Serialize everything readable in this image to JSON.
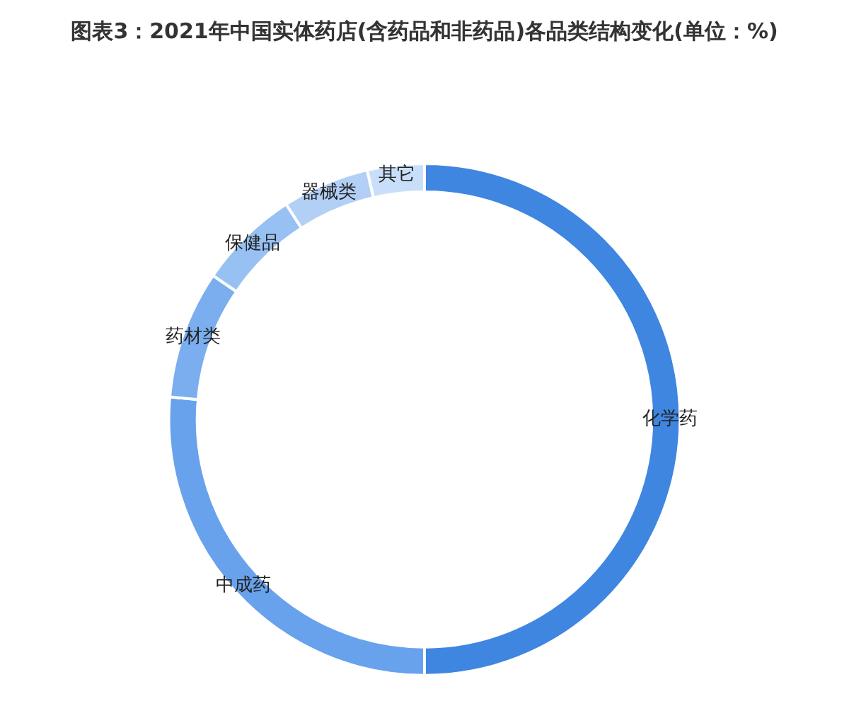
{
  "chart_data": {
    "type": "donut",
    "title": "图表3：2021年中国实体药店(含药品和非药品)各品类结构变化(单位：%)",
    "categories": [
      "化学药",
      "中成药",
      "药材类",
      "保健品",
      "器械类",
      "其它"
    ],
    "values": [
      50,
      26.4,
      8.1,
      6.4,
      5.5,
      3.6
    ],
    "colors": [
      "#3f86e0",
      "#68a2ec",
      "#7aaeef",
      "#98c1f3",
      "#b2d0f6",
      "#c9dff9"
    ],
    "legend": false
  }
}
